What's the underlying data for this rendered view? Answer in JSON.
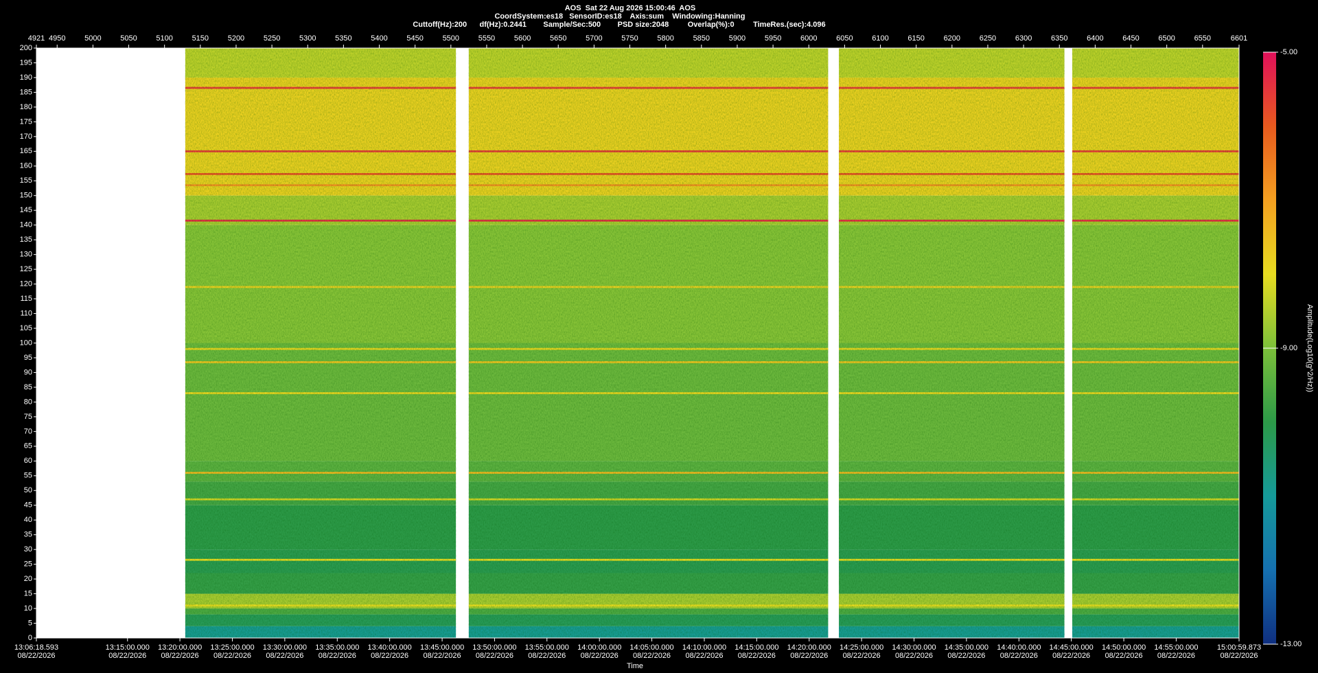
{
  "chart_data": {
    "type": "spectrogram",
    "title": "AOS  Sat 22 Aug 2026 15:00:46  AOS",
    "subtitle": "CoordSystem:es18   SensorID:es18    Axis:sum    Windowing:Hanning",
    "parameters": "Cuttoff(Hz):200      df(Hz):0.2441        Sample/Sec:500        PSD size:2048         Overlap(%):0         TimeRes.(sec):4.096",
    "xlabel": "Time",
    "colorbar_label": "Amplitude(Log10(g^2/Hz))",
    "xlim": [
      4921,
      6601
    ],
    "xticks": [
      4921,
      4950,
      5000,
      5050,
      5100,
      5150,
      5200,
      5250,
      5300,
      5350,
      5400,
      5450,
      5500,
      5550,
      5600,
      5650,
      5700,
      5750,
      5800,
      5850,
      5900,
      5950,
      6000,
      6050,
      6100,
      6150,
      6200,
      6250,
      6300,
      6350,
      6400,
      6450,
      6500,
      6550,
      6601
    ],
    "time_ticks": [
      {
        "value": 4921,
        "label": "13:06:18.593",
        "date": "08/22/2026"
      },
      {
        "value": 5048.3,
        "label": "13:15:00.000",
        "date": "08/22/2026"
      },
      {
        "value": 5121.5,
        "label": "13:20:00.000",
        "date": "08/22/2026"
      },
      {
        "value": 5194.8,
        "label": "13:25:00.000",
        "date": "08/22/2026"
      },
      {
        "value": 5268.0,
        "label": "13:30:00.000",
        "date": "08/22/2026"
      },
      {
        "value": 5341.3,
        "label": "13:35:00.000",
        "date": "08/22/2026"
      },
      {
        "value": 5414.5,
        "label": "13:40:00.000",
        "date": "08/22/2026"
      },
      {
        "value": 5487.8,
        "label": "13:45:00.000",
        "date": "08/22/2026"
      },
      {
        "value": 5561.0,
        "label": "13:50:00.000",
        "date": "08/22/2026"
      },
      {
        "value": 5634.2,
        "label": "13:55:00.000",
        "date": "08/22/2026"
      },
      {
        "value": 5707.5,
        "label": "14:00:00.000",
        "date": "08/22/2026"
      },
      {
        "value": 5780.7,
        "label": "14:05:00.000",
        "date": "08/22/2026"
      },
      {
        "value": 5854.0,
        "label": "14:10:00.000",
        "date": "08/22/2026"
      },
      {
        "value": 5927.2,
        "label": "14:15:00.000",
        "date": "08/22/2026"
      },
      {
        "value": 6000.5,
        "label": "14:20:00.000",
        "date": "08/22/2026"
      },
      {
        "value": 6073.7,
        "label": "14:25:00.000",
        "date": "08/22/2026"
      },
      {
        "value": 6147.0,
        "label": "14:30:00.000",
        "date": "08/22/2026"
      },
      {
        "value": 6220.2,
        "label": "14:35:00.000",
        "date": "08/22/2026"
      },
      {
        "value": 6293.5,
        "label": "14:40:00.000",
        "date": "08/22/2026"
      },
      {
        "value": 6366.7,
        "label": "14:45:00.000",
        "date": "08/22/2026"
      },
      {
        "value": 6440.0,
        "label": "14:50:00.000",
        "date": "08/22/2026"
      },
      {
        "value": 6513.2,
        "label": "14:55:00.000",
        "date": "08/22/2026"
      },
      {
        "value": 6601,
        "label": "15:00:59.873",
        "date": "08/22/2026"
      }
    ],
    "ylim": [
      0,
      200
    ],
    "yticks": [
      0,
      5,
      10,
      15,
      20,
      25,
      30,
      35,
      40,
      45,
      50,
      55,
      60,
      65,
      70,
      75,
      80,
      85,
      90,
      95,
      100,
      105,
      110,
      115,
      120,
      125,
      130,
      135,
      140,
      145,
      150,
      155,
      160,
      165,
      170,
      175,
      180,
      185,
      190,
      195,
      200
    ],
    "clim": [
      -13,
      -5
    ],
    "cticks": [
      {
        "value": -5,
        "label": "-5.00"
      },
      {
        "value": -9,
        "label": "-9.00"
      },
      {
        "value": -13,
        "label": "-13.00"
      }
    ],
    "colormap": [
      "#0f2f80",
      "#1570b0",
      "#159a9a",
      "#2c9a48",
      "#7cc03a",
      "#e8dc20",
      "#f4a020",
      "#e85a1e",
      "#e0105a"
    ],
    "segments": [
      [
        5129,
        5507
      ],
      [
        5525,
        6027
      ],
      [
        6042,
        6357
      ],
      [
        6368,
        6601
      ]
    ],
    "profile": [
      {
        "from": 0,
        "to": 4,
        "amplitude": -10.9
      },
      {
        "from": 4,
        "to": 8,
        "amplitude": -10.2
      },
      {
        "from": 8,
        "to": 10,
        "amplitude": -9.6
      },
      {
        "from": 10,
        "to": 15,
        "amplitude": -8.6
      },
      {
        "from": 15,
        "to": 22,
        "amplitude": -9.9
      },
      {
        "from": 22,
        "to": 30,
        "amplitude": -10.1
      },
      {
        "from": 30,
        "to": 45,
        "amplitude": -10.0
      },
      {
        "from": 45,
        "to": 53,
        "amplitude": -9.7
      },
      {
        "from": 53,
        "to": 60,
        "amplitude": -9.4
      },
      {
        "from": 60,
        "to": 100,
        "amplitude": -9.2
      },
      {
        "from": 100,
        "to": 140,
        "amplitude": -8.9
      },
      {
        "from": 140,
        "to": 150,
        "amplitude": -8.6
      },
      {
        "from": 150,
        "to": 190,
        "amplitude": -7.8
      },
      {
        "from": 190,
        "to": 200,
        "amplitude": -8.4
      }
    ],
    "lines": [
      {
        "freq": 186.5,
        "amplitude": -5.6
      },
      {
        "freq": 165,
        "amplitude": -5.6
      },
      {
        "freq": 157.3,
        "amplitude": -5.9
      },
      {
        "freq": 153.5,
        "amplitude": -6.8
      },
      {
        "freq": 141.5,
        "amplitude": -5.4
      },
      {
        "freq": 119,
        "amplitude": -7.8
      },
      {
        "freq": 98,
        "amplitude": -7.9
      },
      {
        "freq": 93.5,
        "amplitude": -7.6
      },
      {
        "freq": 83,
        "amplitude": -7.9
      },
      {
        "freq": 56,
        "amplitude": -7.4
      },
      {
        "freq": 47,
        "amplitude": -8.2
      },
      {
        "freq": 26.5,
        "amplitude": -8.0
      },
      {
        "freq": 11,
        "amplitude": -8.0
      }
    ]
  }
}
